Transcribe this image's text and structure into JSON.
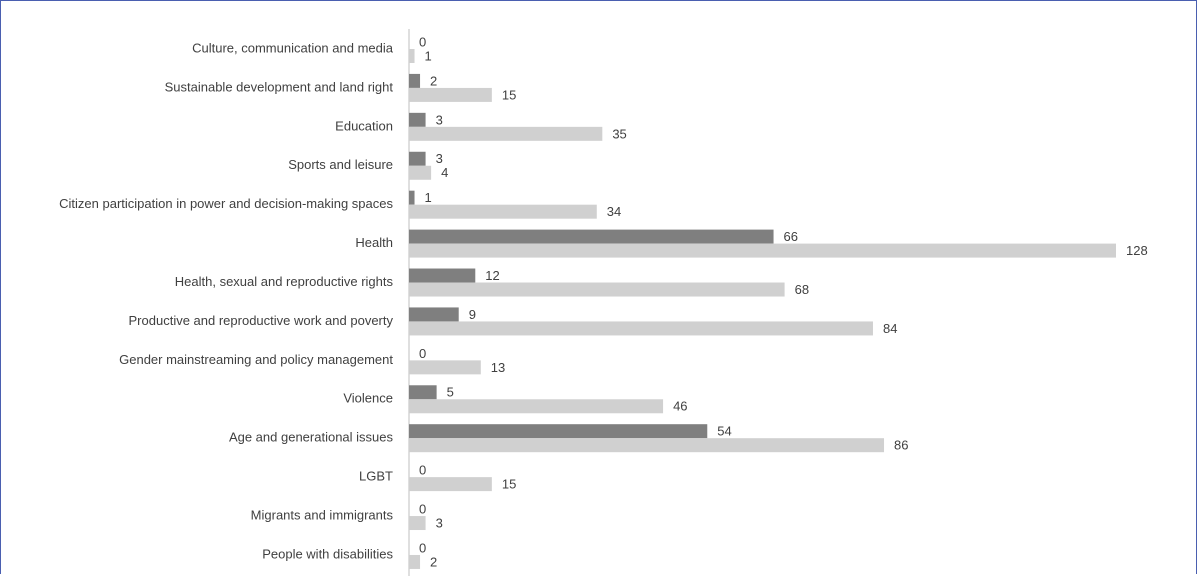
{
  "chart_data": {
    "type": "bar",
    "orientation": "horizontal",
    "title": "",
    "xlabel": "",
    "ylabel": "",
    "grid": false,
    "categories": [
      "Culture, communication and media",
      "Sustainable development and land right",
      "Education",
      "Sports and leisure",
      "Citizen participation in power and decision-making spaces",
      "Health",
      "Health, sexual and reproductive rights",
      "Productive and reproductive work and poverty",
      "Gender mainstreaming and policy management",
      "Violence",
      "Age and generational issues",
      "LGBT",
      "Migrants and immigrants",
      "People with disabilities"
    ],
    "series": [
      {
        "color": "#7f7f7f",
        "values": [
          0,
          2,
          3,
          3,
          1,
          66,
          12,
          9,
          0,
          5,
          54,
          0,
          0,
          0
        ]
      },
      {
        "color": "#d0d0d0",
        "values": [
          1,
          15,
          35,
          4,
          34,
          128,
          68,
          84,
          13,
          46,
          86,
          15,
          3,
          2
        ]
      }
    ],
    "xlim": [
      0,
      128
    ]
  }
}
